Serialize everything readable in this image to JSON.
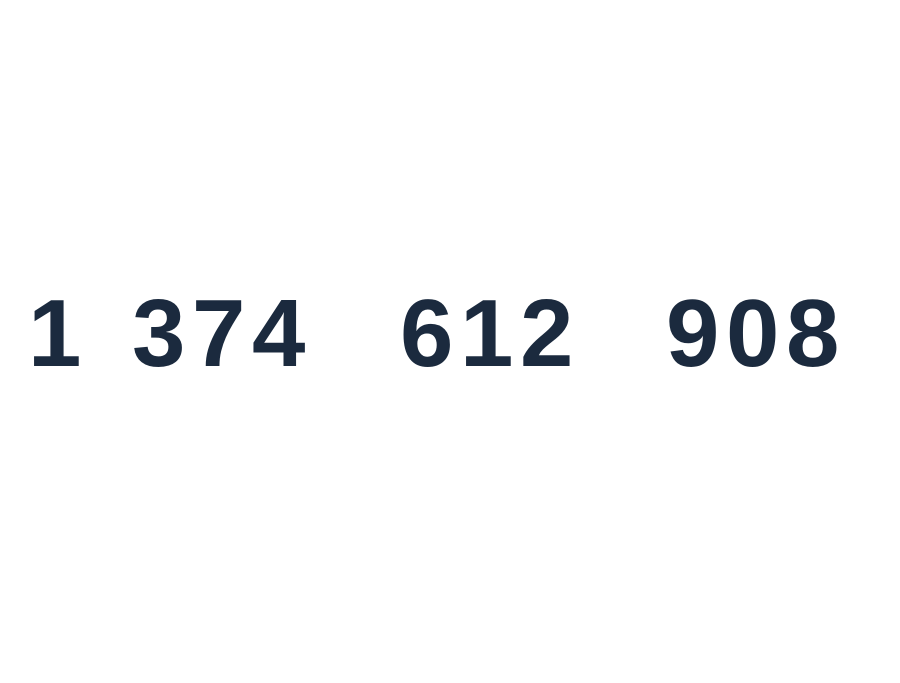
{
  "number": {
    "groups": [
      {
        "digits": [
          "1"
        ]
      },
      {
        "digits": [
          "3",
          "7",
          "4"
        ]
      },
      {
        "digits": [
          "6",
          "1",
          "2"
        ]
      },
      {
        "digits": [
          "9",
          "0",
          "8"
        ]
      }
    ]
  },
  "colors": {
    "background": "#ffffff",
    "text": "#1b2a3e"
  }
}
